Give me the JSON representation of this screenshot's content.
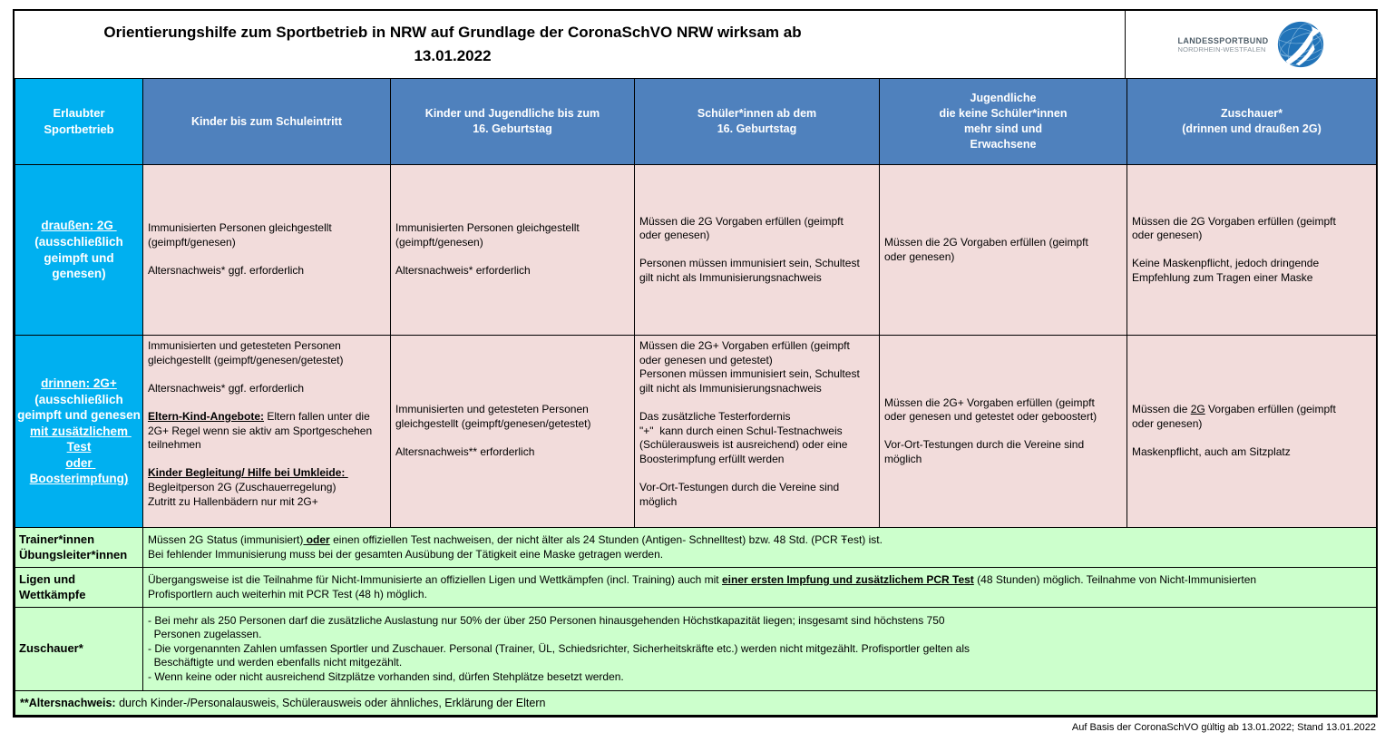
{
  "title": "Orientierungshilfe zum Sportbetrieb in NRW auf Grundlage der CoronaSchVO NRW wirksam ab\n13.01.2022",
  "logo": {
    "line1": "LANDESSPORTBUND",
    "line2": "NORDRHEIN-WESTFALEN"
  },
  "colors": {
    "header_blue": "#4f81bd",
    "row_label_cyan": "#00b0f0",
    "cell_pink": "#f2dcdb",
    "cell_green": "#ccffcc",
    "logo_blue": "#2173b8"
  },
  "table": {
    "header": {
      "c0": "Erlaubter\nSportbetrieb",
      "c1": "Kinder bis zum Schuleintritt",
      "c2": "Kinder und Jugendliche bis zum\n16. Geburtstag",
      "c3": "Schüler*innen ab dem\n16. Geburtstag",
      "c4": "Jugendliche\ndie keine Schüler*innen\nmehr sind und\nErwachsene",
      "c5": "Zuschauer*\n(drinnen und draußen 2G)"
    },
    "outdoor": {
      "label": [
        {
          "t": "draußen: 2G ",
          "u": true
        },
        {
          "t": "\n(ausschließlich\ngeimpft und genesen)"
        }
      ],
      "kinder": "Immunisierten Personen gleichgestellt\n(geimpft/genesen)\n\nAltersnachweis* ggf. erforderlich",
      "jugend16": "Immunisierten Personen gleichgestellt\n(geimpft/genesen)\n\nAltersnachweis* erforderlich",
      "schueler16": "Müssen die 2G Vorgaben erfüllen (geimpft\noder genesen)\n\nPersonen müssen immunisiert sein, Schultest\ngilt nicht als Immunisierungsnachweis",
      "erwachsene": "Müssen die 2G Vorgaben erfüllen (geimpft\noder genesen)",
      "zuschauer": "Müssen die 2G Vorgaben erfüllen (geimpft\noder genesen)\n\nKeine Maskenpflicht, jedoch dringende\nEmpfehlung zum Tragen einer Maske"
    },
    "indoor": {
      "label": [
        {
          "t": "drinnen: 2G+",
          "u": true
        },
        {
          "t": "\n(ausschließlich\ngeimpft und genesen\n"
        },
        {
          "t": "mit zusätzlichem Test",
          "u": true
        },
        {
          "t": "\n"
        },
        {
          "t": "oder Boosterimpfung)",
          "u": true
        }
      ],
      "kinder": [
        {
          "t": "Immunisierten und getesteten Personen\ngleichgestellt (geimpft/genesen/getestet)\n\nAltersnachweis* ggf. erforderlich\n\n"
        },
        {
          "t": "Eltern-Kind-Angebote:",
          "b": true,
          "u": true
        },
        {
          "t": " Eltern fallen unter die\n2G+ Regel wenn sie aktiv am Sportgeschehen\nteilnehmen\n\n"
        },
        {
          "t": "Kinder Begleitung/ Hilfe bei Umkleide: ",
          "b": true,
          "u": true
        },
        {
          "t": "\nBegleitperson 2G (Zuschauerregelung)\nZutritt zu Hallenbädern nur mit 2G+"
        }
      ],
      "jugend16": "Immunisierten und getesteten Personen\ngleichgestellt (geimpft/genesen/getestet)\n\nAltersnachweis** erforderlich",
      "schueler16": "Müssen die 2G+ Vorgaben erfüllen (geimpft\noder genesen und getestet)\nPersonen müssen immunisiert sein, Schultest\ngilt nicht als Immunisierungsnachweis\n\nDas zusätzliche Testerfordernis\n\"+\"  kann durch einen Schul-Testnachweis\n(Schülerausweis ist ausreichend) oder eine\nBoosterimpfung erfüllt werden\n\nVor-Ort-Testungen durch die Vereine sind\nmöglich",
      "erwachsene": "Müssen die 2G+ Vorgaben erfüllen (geimpft\noder genesen und getestet oder geboostert)\n\nVor-Ort-Testungen durch die Vereine sind\nmöglich",
      "zuschauer": [
        {
          "t": "Müssen die "
        },
        {
          "t": "2G",
          "u": true
        },
        {
          "t": " Vorgaben erfüllen (geimpft\noder genesen)\n\nMaskenpflicht, auch am Sitzplatz"
        }
      ]
    },
    "trainer": {
      "label": "Trainer*innen\nÜbungsleiter*innen",
      "content": [
        {
          "t": "Müssen 2G Status (immunisiert)"
        },
        {
          "t": " oder",
          "b": true,
          "u": true
        },
        {
          "t": " einen offiziellen Test nachweisen, der nicht älter als 24 Stunden (Antigen- Schnelltest) bzw. 48 Std. (PCR Ŧest) ist.\nBei fehlender Immunisierung muss bei der gesamten Ausübung der Tätigkeit eine Maske getragen werden."
        }
      ]
    },
    "ligen": {
      "label": "Ligen und\nWettkämpfe",
      "content": [
        {
          "t": "Übergangsweise ist die Teilnahme für Nicht-Immunisierte an offiziellen Ligen und Wettkämpfen (incl. Training) auch mit "
        },
        {
          "t": "einer ersten Impfung und zusätzlichem PCR Test",
          "b": true,
          "u": true
        },
        {
          "t": " (48 Stunden) möglich. Teilnahme von Nicht-Immunisierten\nProfisportlern auch weiterhin mit PCR Test (48 h) möglich."
        }
      ]
    },
    "zuschauer_row": {
      "label": "Zuschauer*",
      "content": "- Bei mehr als 250 Personen darf die zusätzliche Auslastung nur 50% der über 250 Personen hinausgehenden Höchstkapazität liegen; insgesamt sind höchstens 750\n  Personen zugelassen.\n- Die vorgenannten Zahlen umfassen Sportler und Zuschauer. Personal (Trainer, ÜL, Schiedsrichter, Sicherheitskräfte etc.) werden nicht mitgezählt. Profisportler gelten als\n  Beschäftigte und werden ebenfalls nicht mitgezählt.\n- Wenn keine oder nicht ausreichend Sitzplätze vorhanden sind, dürfen Stehplätze besetzt werden."
    },
    "footnote": [
      {
        "t": "**Altersnachweis:",
        "b": true
      },
      {
        "t": " durch Kinder-/Personalausweis, Schülerausweis oder ähnliches, Erklärung der Eltern"
      }
    ]
  },
  "bottom_note": "Auf Basis der CoronaSchVO gültig ab 13.01.2022; Stand 13.01.2022"
}
